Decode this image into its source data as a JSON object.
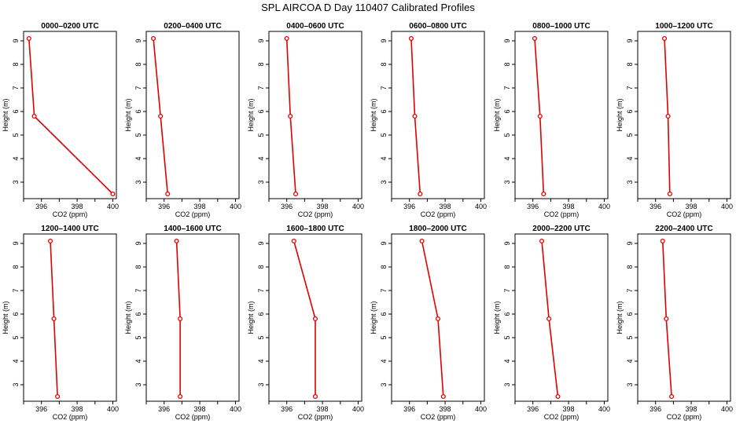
{
  "figure_title": "SPL AIRCOA D  Day 110407  Calibrated Profiles",
  "colors": {
    "series": "#dd0000",
    "axis": "#000000",
    "background": "#ffffff"
  },
  "chart_data": [
    {
      "type": "line",
      "title": "0000–0200 UTC",
      "xlabel": "CO2 (ppm)",
      "ylabel": "Height (m)",
      "xlim": [
        395,
        400.2
      ],
      "ylim": [
        2.3,
        9.4
      ],
      "xticks": [
        396,
        398,
        400
      ],
      "yticks": [
        3,
        4,
        5,
        6,
        7,
        8,
        9
      ],
      "grid": false,
      "series": [
        {
          "x": [
            395.3,
            395.6,
            400.0
          ],
          "y": [
            9.1,
            5.8,
            2.5
          ]
        }
      ]
    },
    {
      "type": "line",
      "title": "0200–0400 UTC",
      "xlabel": "CO2 (ppm)",
      "ylabel": "Height (m)",
      "xlim": [
        395,
        400.2
      ],
      "ylim": [
        2.3,
        9.4
      ],
      "xticks": [
        396,
        398,
        400
      ],
      "yticks": [
        3,
        4,
        5,
        6,
        7,
        8,
        9
      ],
      "grid": false,
      "series": [
        {
          "x": [
            395.4,
            395.8,
            396.2
          ],
          "y": [
            9.1,
            5.8,
            2.5
          ]
        }
      ]
    },
    {
      "type": "line",
      "title": "0400–0600 UTC",
      "xlabel": "CO2 (ppm)",
      "ylabel": "Height (m)",
      "xlim": [
        395,
        400.2
      ],
      "ylim": [
        2.3,
        9.4
      ],
      "xticks": [
        396,
        398,
        400
      ],
      "yticks": [
        3,
        4,
        5,
        6,
        7,
        8,
        9
      ],
      "grid": false,
      "series": [
        {
          "x": [
            396.0,
            396.2,
            396.5
          ],
          "y": [
            9.1,
            5.8,
            2.5
          ]
        }
      ]
    },
    {
      "type": "line",
      "title": "0600–0800 UTC",
      "xlabel": "CO2 (ppm)",
      "ylabel": "Height (m)",
      "xlim": [
        395,
        400.2
      ],
      "ylim": [
        2.3,
        9.4
      ],
      "xticks": [
        396,
        398,
        400
      ],
      "yticks": [
        3,
        4,
        5,
        6,
        7,
        8,
        9
      ],
      "grid": false,
      "series": [
        {
          "x": [
            396.1,
            396.3,
            396.6
          ],
          "y": [
            9.1,
            5.8,
            2.5
          ]
        }
      ]
    },
    {
      "type": "line",
      "title": "0800–1000 UTC",
      "xlabel": "CO2 (ppm)",
      "ylabel": "Height (m)",
      "xlim": [
        395,
        400.2
      ],
      "ylim": [
        2.3,
        9.4
      ],
      "xticks": [
        396,
        398,
        400
      ],
      "yticks": [
        3,
        4,
        5,
        6,
        7,
        8,
        9
      ],
      "grid": false,
      "series": [
        {
          "x": [
            396.1,
            396.4,
            396.6
          ],
          "y": [
            9.1,
            5.8,
            2.5
          ]
        }
      ]
    },
    {
      "type": "line",
      "title": "1000–1200 UTC",
      "xlabel": "CO2 (ppm)",
      "ylabel": "Height (m)",
      "xlim": [
        395,
        400.2
      ],
      "ylim": [
        2.3,
        9.4
      ],
      "xticks": [
        396,
        398,
        400
      ],
      "yticks": [
        3,
        4,
        5,
        6,
        7,
        8,
        9
      ],
      "grid": false,
      "series": [
        {
          "x": [
            396.5,
            396.7,
            396.8
          ],
          "y": [
            9.1,
            5.8,
            2.5
          ]
        }
      ]
    },
    {
      "type": "line",
      "title": "1200–1400 UTC",
      "xlabel": "CO2 (ppm)",
      "ylabel": "Height (m)",
      "xlim": [
        395,
        400.2
      ],
      "ylim": [
        2.3,
        9.4
      ],
      "xticks": [
        396,
        398,
        400
      ],
      "yticks": [
        3,
        4,
        5,
        6,
        7,
        8,
        9
      ],
      "grid": false,
      "series": [
        {
          "x": [
            396.5,
            396.7,
            396.9
          ],
          "y": [
            9.1,
            5.8,
            2.5
          ]
        }
      ]
    },
    {
      "type": "line",
      "title": "1400–1600 UTC",
      "xlabel": "CO2 (ppm)",
      "ylabel": "Height (m)",
      "xlim": [
        395,
        400.2
      ],
      "ylim": [
        2.3,
        9.4
      ],
      "xticks": [
        396,
        398,
        400
      ],
      "yticks": [
        3,
        4,
        5,
        6,
        7,
        8,
        9
      ],
      "grid": false,
      "series": [
        {
          "x": [
            396.7,
            396.9,
            396.9
          ],
          "y": [
            9.1,
            5.8,
            2.5
          ]
        }
      ]
    },
    {
      "type": "line",
      "title": "1600–1800 UTC",
      "xlabel": "CO2 (ppm)",
      "ylabel": "Height (m)",
      "xlim": [
        395,
        400.2
      ],
      "ylim": [
        2.3,
        9.4
      ],
      "xticks": [
        396,
        398,
        400
      ],
      "yticks": [
        3,
        4,
        5,
        6,
        7,
        8,
        9
      ],
      "grid": false,
      "series": [
        {
          "x": [
            396.4,
            397.6,
            397.6
          ],
          "y": [
            9.1,
            5.8,
            2.5
          ]
        }
      ]
    },
    {
      "type": "line",
      "title": "1800–2000 UTC",
      "xlabel": "CO2 (ppm)",
      "ylabel": "Height (m)",
      "xlim": [
        395,
        400.2
      ],
      "ylim": [
        2.3,
        9.4
      ],
      "xticks": [
        396,
        398,
        400
      ],
      "yticks": [
        3,
        4,
        5,
        6,
        7,
        8,
        9
      ],
      "grid": false,
      "series": [
        {
          "x": [
            396.7,
            397.6,
            397.9
          ],
          "y": [
            9.1,
            5.8,
            2.5
          ]
        }
      ]
    },
    {
      "type": "line",
      "title": "2000–2200 UTC",
      "xlabel": "CO2 (ppm)",
      "ylabel": "Height (m)",
      "xlim": [
        395,
        400.2
      ],
      "ylim": [
        2.3,
        9.4
      ],
      "xticks": [
        396,
        398,
        400
      ],
      "yticks": [
        3,
        4,
        5,
        6,
        7,
        8,
        9
      ],
      "grid": false,
      "series": [
        {
          "x": [
            396.5,
            396.9,
            397.4
          ],
          "y": [
            9.1,
            5.8,
            2.5
          ]
        }
      ]
    },
    {
      "type": "line",
      "title": "2200–2400 UTC",
      "xlabel": "CO2 (ppm)",
      "ylabel": "Height (m)",
      "xlim": [
        395,
        400.2
      ],
      "ylim": [
        2.3,
        9.4
      ],
      "xticks": [
        396,
        398,
        400
      ],
      "yticks": [
        3,
        4,
        5,
        6,
        7,
        8,
        9
      ],
      "grid": false,
      "series": [
        {
          "x": [
            396.4,
            396.6,
            396.9
          ],
          "y": [
            9.1,
            5.8,
            2.5
          ]
        }
      ]
    }
  ]
}
